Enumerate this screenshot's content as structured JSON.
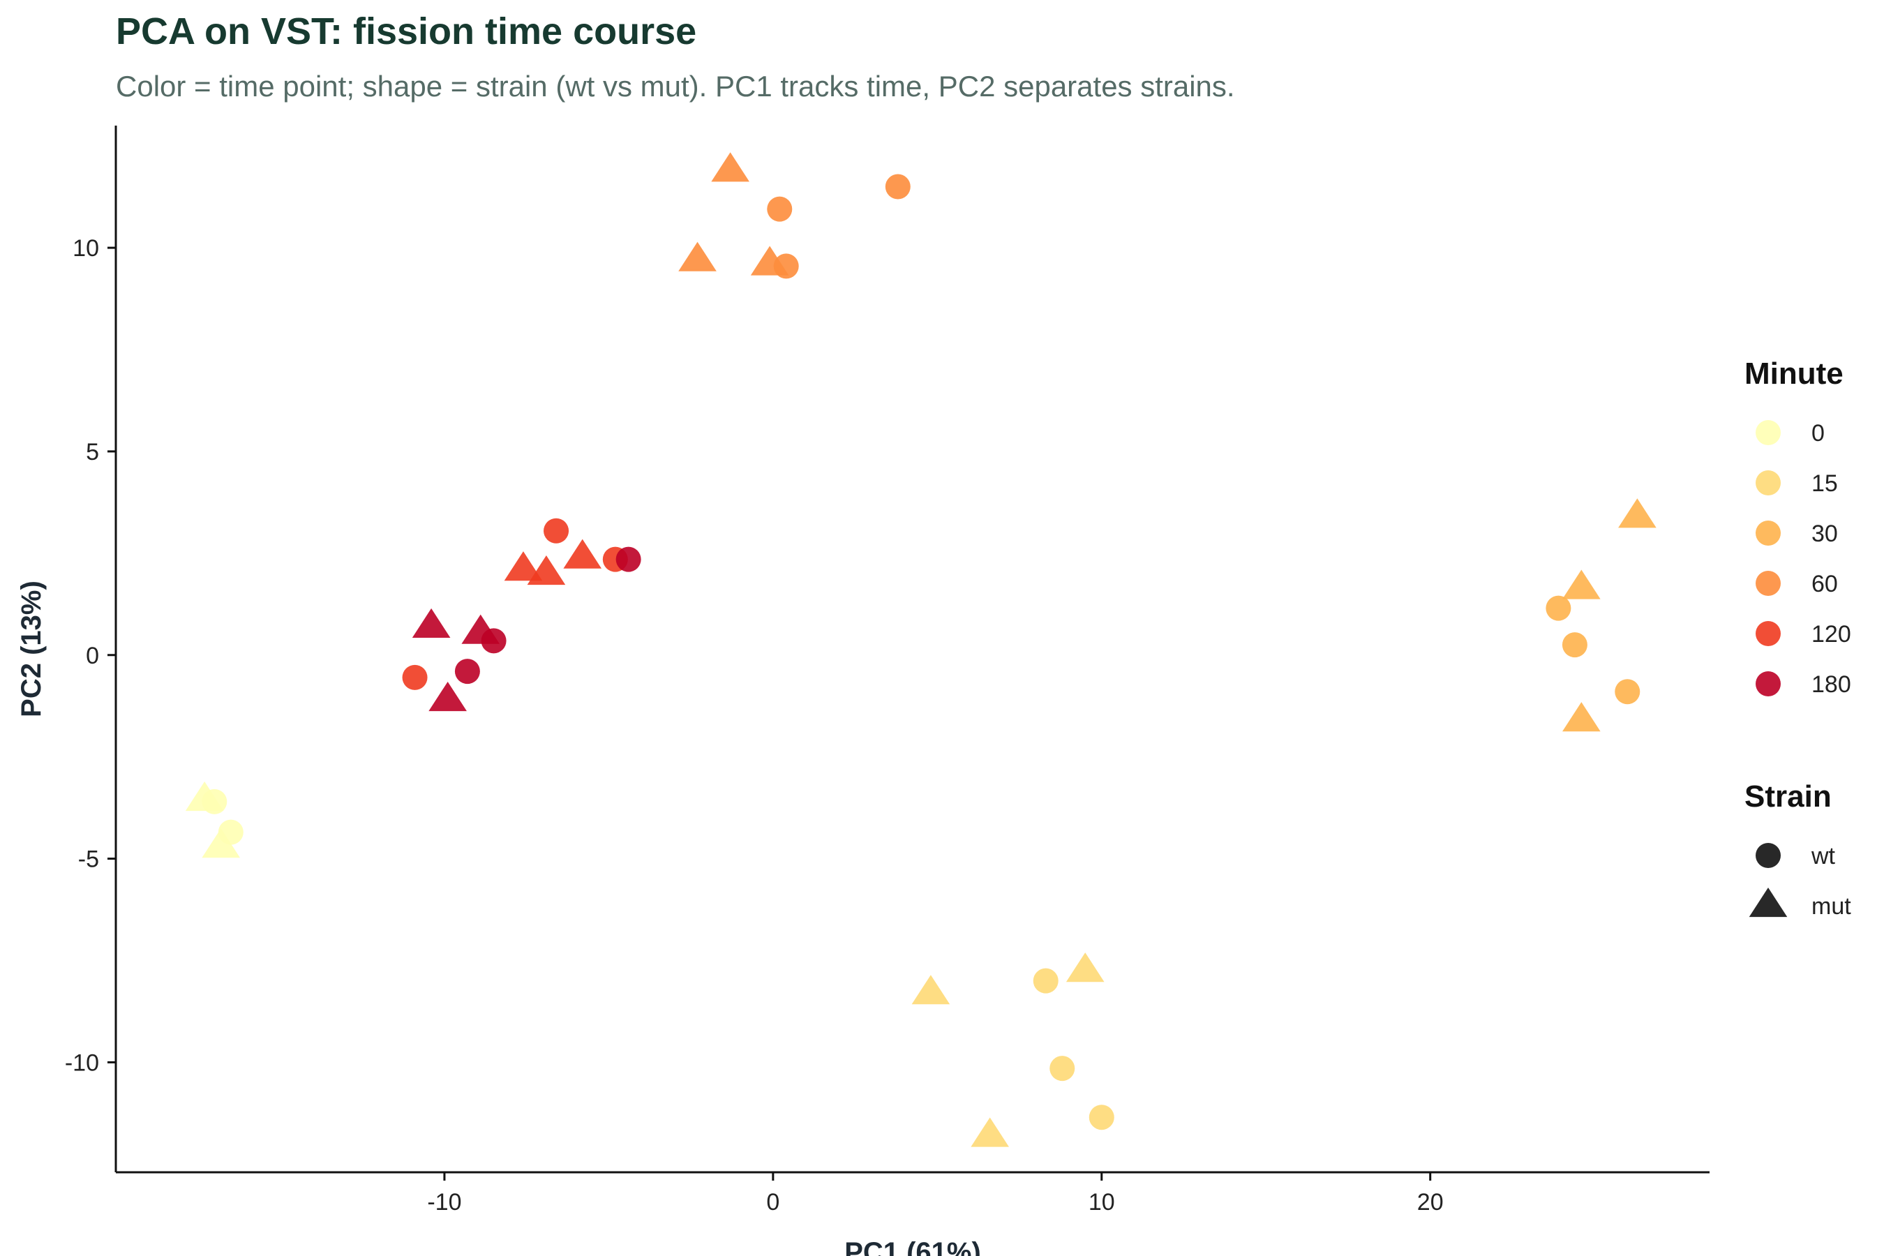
{
  "chart_data": {
    "type": "scatter",
    "title": "PCA on VST: fission time course",
    "subtitle": "Color = time point; shape = strain (wt vs mut). PC1 tracks time, PC2 separates strains.",
    "xlabel": "PC1 (61%)",
    "ylabel": "PC2 (13%)",
    "xlim": [
      -20,
      28.5
    ],
    "ylim": [
      -12.7,
      13
    ],
    "xticks": [
      -10,
      0,
      10,
      20
    ],
    "xtick_labels": [
      "-10",
      "0",
      "10",
      "20"
    ],
    "yticks": [
      -10,
      -5,
      0,
      5,
      10
    ],
    "ytick_labels": [
      "-10",
      "-5",
      "0",
      "5",
      "10"
    ],
    "grid": false,
    "legend_placement": "right",
    "color_legend": {
      "title": "Minute",
      "entries": [
        {
          "label": "0",
          "color": "#ffffb2"
        },
        {
          "label": "15",
          "color": "#fed976"
        },
        {
          "label": "30",
          "color": "#feb24c"
        },
        {
          "label": "60",
          "color": "#fd8d3c"
        },
        {
          "label": "120",
          "color": "#f03b20"
        },
        {
          "label": "180",
          "color": "#bd0026"
        }
      ]
    },
    "shape_legend": {
      "title": "Strain",
      "entries": [
        {
          "label": "wt",
          "shape": "circle"
        },
        {
          "label": "mut",
          "shape": "triangle"
        }
      ]
    },
    "points": [
      {
        "x": -17.3,
        "y": -3.55,
        "minute": "0",
        "strain": "mut"
      },
      {
        "x": -17.0,
        "y": -3.6,
        "minute": "0",
        "strain": "wt"
      },
      {
        "x": -16.8,
        "y": -4.7,
        "minute": "0",
        "strain": "mut"
      },
      {
        "x": -16.5,
        "y": -4.35,
        "minute": "0",
        "strain": "wt"
      },
      {
        "x": 4.8,
        "y": -8.3,
        "minute": "15",
        "strain": "mut"
      },
      {
        "x": 8.3,
        "y": -8.0,
        "minute": "15",
        "strain": "wt"
      },
      {
        "x": 9.5,
        "y": -7.75,
        "minute": "15",
        "strain": "mut"
      },
      {
        "x": 8.8,
        "y": -10.15,
        "minute": "15",
        "strain": "wt"
      },
      {
        "x": 6.6,
        "y": -11.8,
        "minute": "15",
        "strain": "mut"
      },
      {
        "x": 10.0,
        "y": -11.35,
        "minute": "15",
        "strain": "wt"
      },
      {
        "x": 26.3,
        "y": 3.4,
        "minute": "30",
        "strain": "mut"
      },
      {
        "x": 24.6,
        "y": 1.65,
        "minute": "30",
        "strain": "mut"
      },
      {
        "x": 23.9,
        "y": 1.15,
        "minute": "30",
        "strain": "wt"
      },
      {
        "x": 24.4,
        "y": 0.25,
        "minute": "30",
        "strain": "wt"
      },
      {
        "x": 26.0,
        "y": -0.9,
        "minute": "30",
        "strain": "wt"
      },
      {
        "x": 24.6,
        "y": -1.6,
        "minute": "30",
        "strain": "mut"
      },
      {
        "x": -1.3,
        "y": 11.9,
        "minute": "60",
        "strain": "mut"
      },
      {
        "x": 3.8,
        "y": 11.5,
        "minute": "60",
        "strain": "wt"
      },
      {
        "x": 0.2,
        "y": 10.95,
        "minute": "60",
        "strain": "wt"
      },
      {
        "x": -2.3,
        "y": 9.7,
        "minute": "60",
        "strain": "mut"
      },
      {
        "x": -0.1,
        "y": 9.6,
        "minute": "60",
        "strain": "mut"
      },
      {
        "x": 0.4,
        "y": 9.55,
        "minute": "60",
        "strain": "wt"
      },
      {
        "x": -6.6,
        "y": 3.05,
        "minute": "120",
        "strain": "wt"
      },
      {
        "x": -5.8,
        "y": 2.4,
        "minute": "120",
        "strain": "mut"
      },
      {
        "x": -7.6,
        "y": 2.1,
        "minute": "120",
        "strain": "mut"
      },
      {
        "x": -6.9,
        "y": 2.0,
        "minute": "120",
        "strain": "mut"
      },
      {
        "x": -4.8,
        "y": 2.35,
        "minute": "120",
        "strain": "wt"
      },
      {
        "x": -10.9,
        "y": -0.55,
        "minute": "120",
        "strain": "wt"
      },
      {
        "x": -4.4,
        "y": 2.35,
        "minute": "180",
        "strain": "wt"
      },
      {
        "x": -10.4,
        "y": 0.7,
        "minute": "180",
        "strain": "mut"
      },
      {
        "x": -8.9,
        "y": 0.55,
        "minute": "180",
        "strain": "mut"
      },
      {
        "x": -8.5,
        "y": 0.35,
        "minute": "180",
        "strain": "wt"
      },
      {
        "x": -9.3,
        "y": -0.4,
        "minute": "180",
        "strain": "wt"
      },
      {
        "x": -9.9,
        "y": -1.1,
        "minute": "180",
        "strain": "mut"
      }
    ]
  }
}
